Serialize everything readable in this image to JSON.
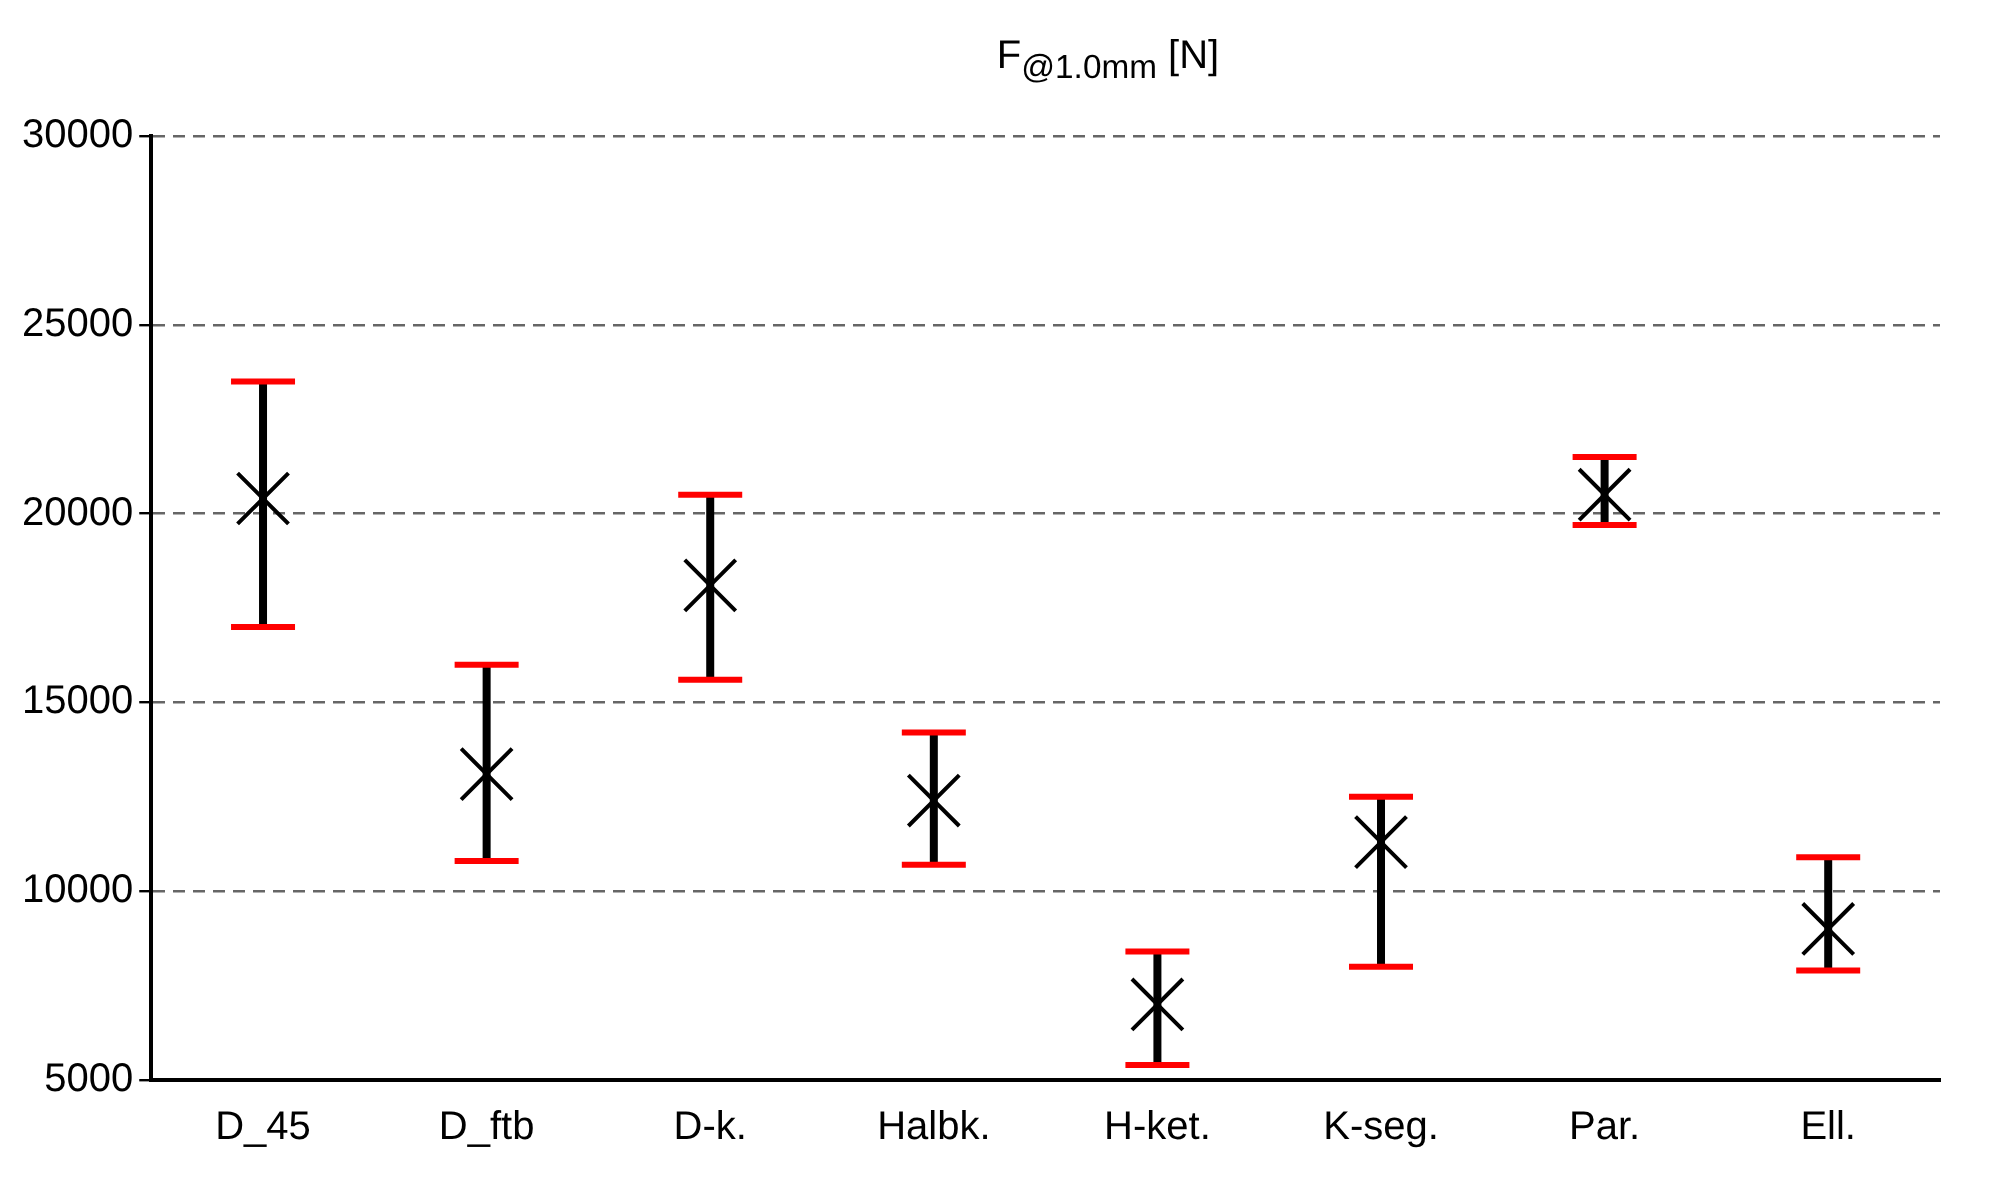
{
  "chart_data": {
    "type": "scatter",
    "title": "F$_{@1.0mm}$ [N]",
    "categories": [
      "D_45",
      "D_ftb",
      "D-k.",
      "Halbk.",
      "H-ket.",
      "K-seg.",
      "Par.",
      "Ell."
    ],
    "series": [
      {
        "color": "#000000",
        "values": [
          20400,
          13100,
          18100,
          12400,
          7000,
          11300,
          20500,
          9000
        ],
        "errors": [
          [
            17000,
            23500
          ],
          [
            10800,
            16000
          ],
          [
            15600,
            20500
          ],
          [
            10700,
            14200
          ],
          [
            5400,
            8400
          ],
          [
            8000,
            12500
          ],
          [
            19700,
            21500
          ],
          [
            7900,
            10900
          ]
        ]
      }
    ],
    "ylim": [
      5000,
      30000
    ],
    "yticks": [
      5000,
      10000,
      15000,
      20000,
      25000,
      30000
    ],
    "grid": "y",
    "legend": false,
    "marker": "cross"
  }
}
